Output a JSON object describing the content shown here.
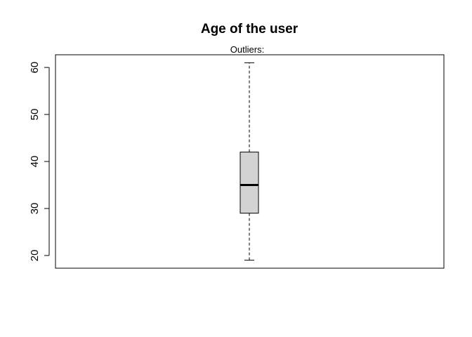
{
  "chart_data": {
    "type": "boxplot",
    "title": "Age of the user",
    "subtitle": "Outliers:",
    "xlabel": "",
    "ylabel": "",
    "ylim": [
      17.3,
      62.7
    ],
    "yticks": [
      20,
      30,
      40,
      50,
      60
    ],
    "grid": false,
    "box": {
      "min": 19,
      "q1": 29,
      "median": 35,
      "q3": 42,
      "max": 61,
      "outliers": []
    },
    "colors": {
      "box_fill": "#d3d3d3",
      "stroke": "#000000"
    }
  }
}
